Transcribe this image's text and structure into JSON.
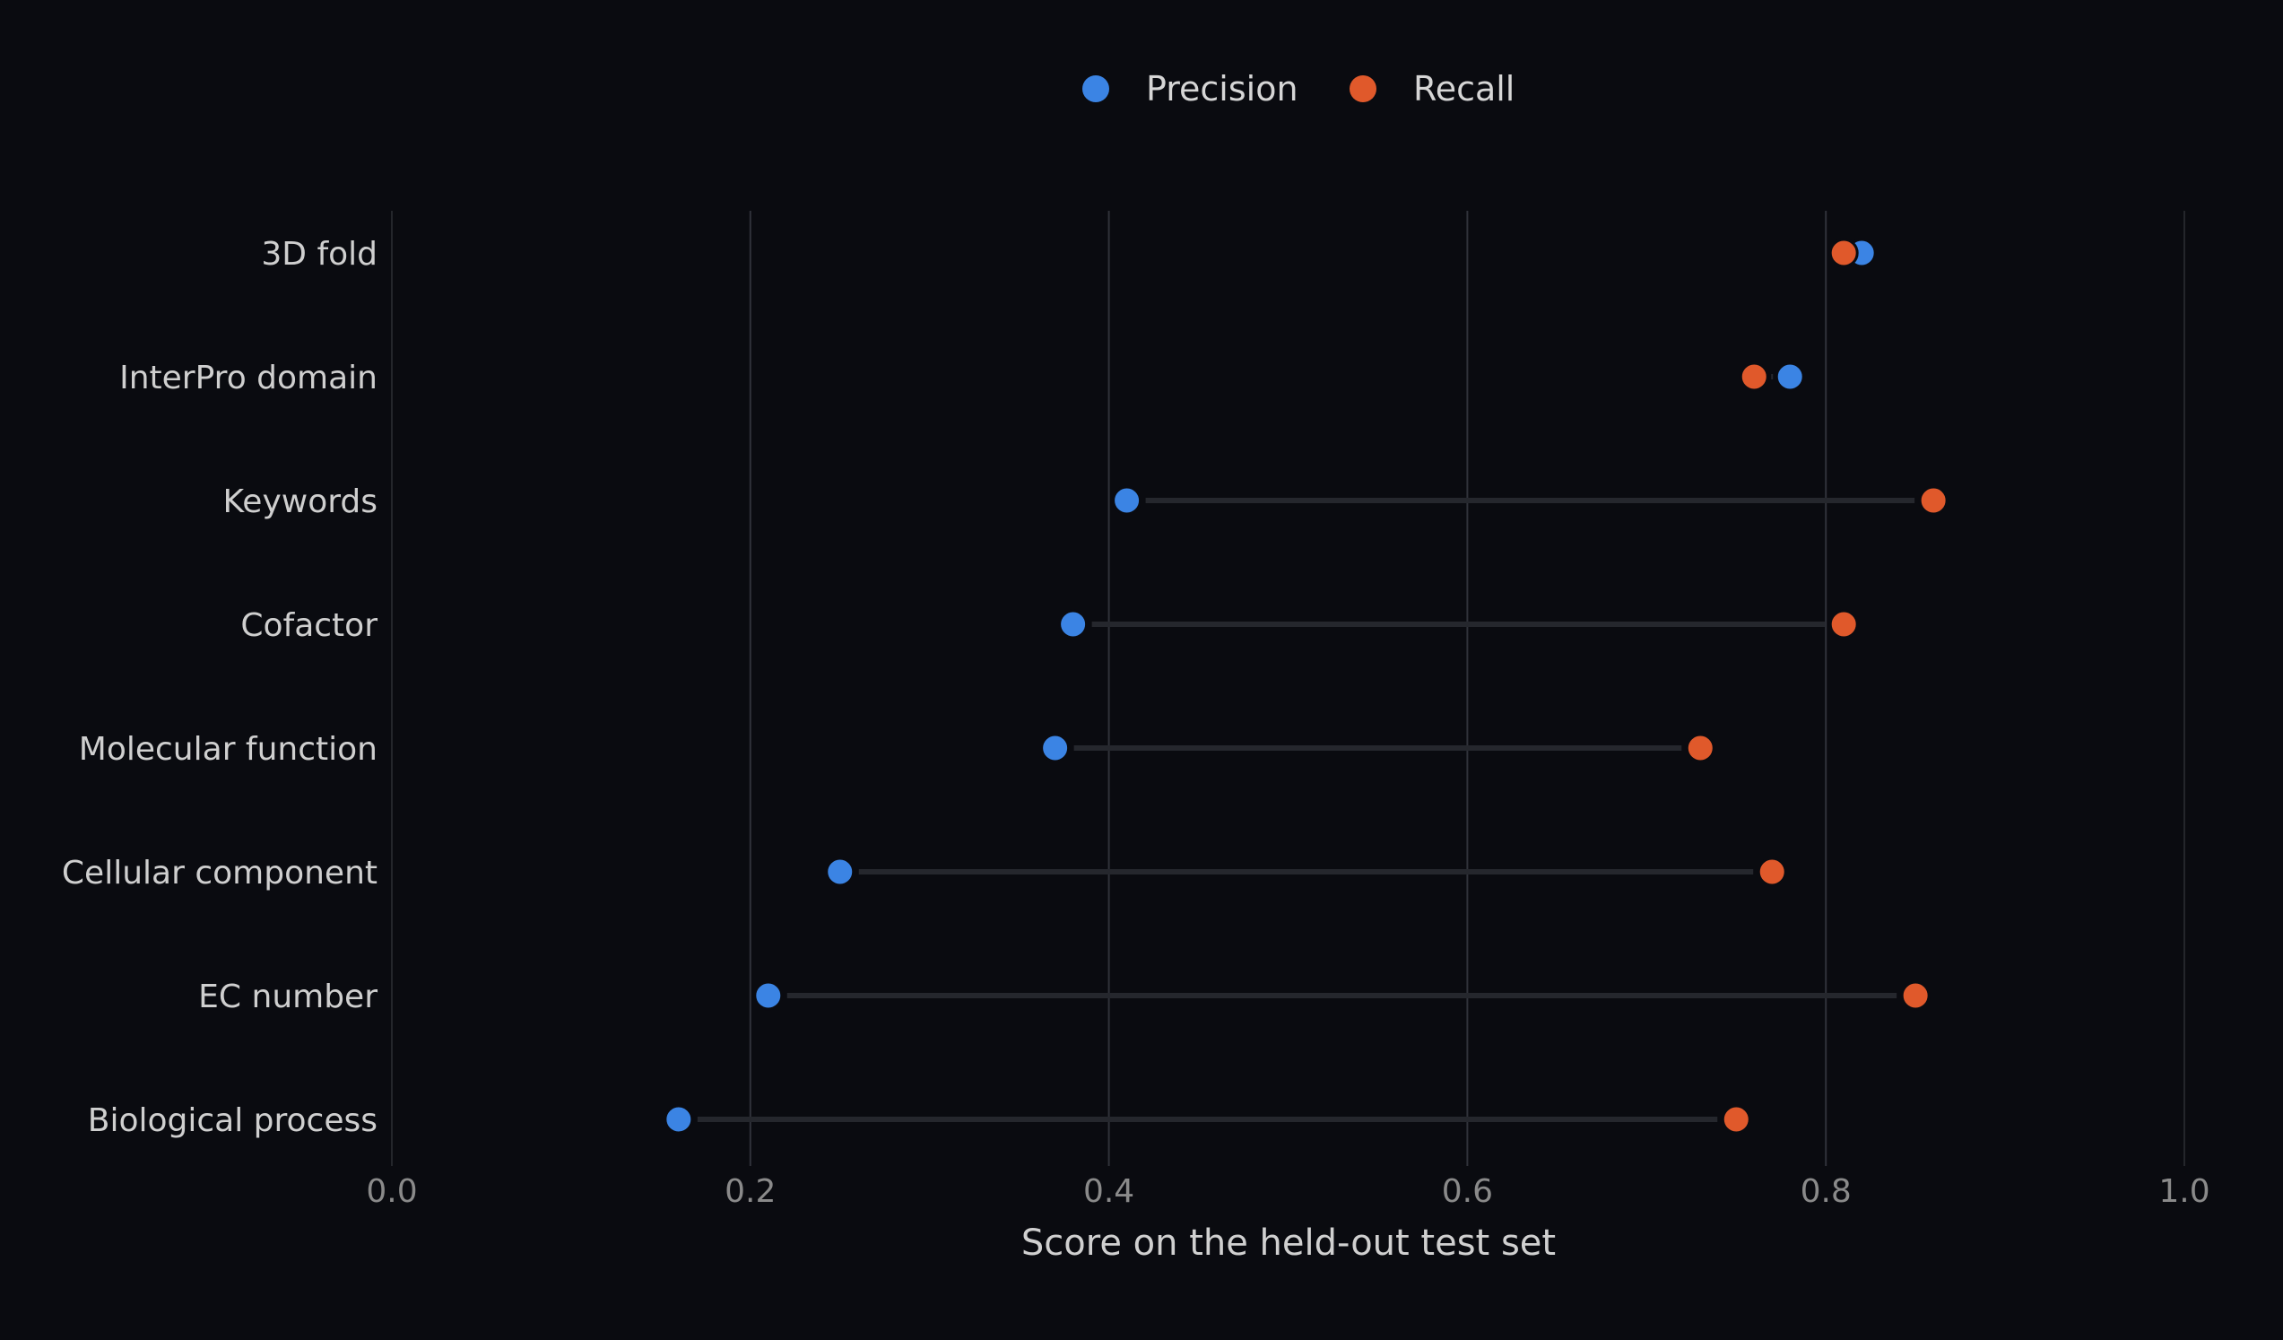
{
  "chart_data": {
    "type": "dumbbell",
    "xlabel": "Score on the held-out test set",
    "xlim": [
      0.0,
      1.0
    ],
    "xticks": [
      "0.0",
      "0.2",
      "0.4",
      "0.6",
      "0.8",
      "1.0"
    ],
    "xtick_values": [
      0.0,
      0.2,
      0.4,
      0.6,
      0.8,
      1.0
    ],
    "grid": true,
    "legend_position": "top-center",
    "categories": [
      "3D fold",
      "InterPro domain",
      "Keywords",
      "Cofactor",
      "Molecular function",
      "Cellular component",
      "EC number",
      "Biological process"
    ],
    "series": [
      {
        "name": "Precision",
        "color": "#3b84e4",
        "values": [
          0.82,
          0.78,
          0.41,
          0.38,
          0.37,
          0.25,
          0.21,
          0.16
        ]
      },
      {
        "name": "Recall",
        "color": "#e0592b",
        "values": [
          0.81,
          0.76,
          0.86,
          0.81,
          0.73,
          0.77,
          0.85,
          0.75
        ]
      }
    ]
  }
}
